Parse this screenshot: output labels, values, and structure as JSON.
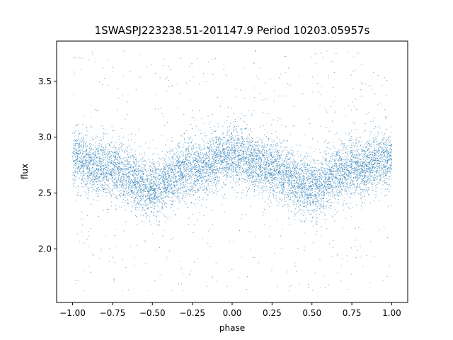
{
  "chart_data": {
    "type": "scatter",
    "title": "1SWASPJ223238.51-201147.9 Period 10203.05957s",
    "xlabel": "phase",
    "ylabel": "flux",
    "xlim": [
      -1.1,
      1.1
    ],
    "ylim": [
      1.52,
      3.86
    ],
    "x_ticks": [
      -1.0,
      -0.75,
      -0.5,
      -0.25,
      0.0,
      0.25,
      0.5,
      0.75,
      1.0
    ],
    "x_tick_labels": [
      "−1.00",
      "−0.75",
      "−0.50",
      "−0.25",
      "0.00",
      "0.25",
      "0.50",
      "0.75",
      "1.00"
    ],
    "y_ticks": [
      2.0,
      2.5,
      3.0,
      3.5
    ],
    "y_tick_labels": [
      "2.0",
      "2.5",
      "3.0",
      "3.5"
    ],
    "grid": false,
    "legend": "none",
    "series": [
      {
        "color": "#1f77b4",
        "x_range": [
          -1.0,
          1.0
        ],
        "profile_x": [
          -1.0,
          -0.75,
          -0.5,
          -0.25,
          0.0,
          0.25,
          0.5,
          0.75,
          1.0
        ],
        "profile_y": [
          2.8,
          2.72,
          2.55,
          2.72,
          2.83,
          2.72,
          2.55,
          2.72,
          2.8
        ],
        "scatter_sigma": 0.13,
        "outlier_range": [
          1.62,
          3.78
        ]
      }
    ]
  }
}
